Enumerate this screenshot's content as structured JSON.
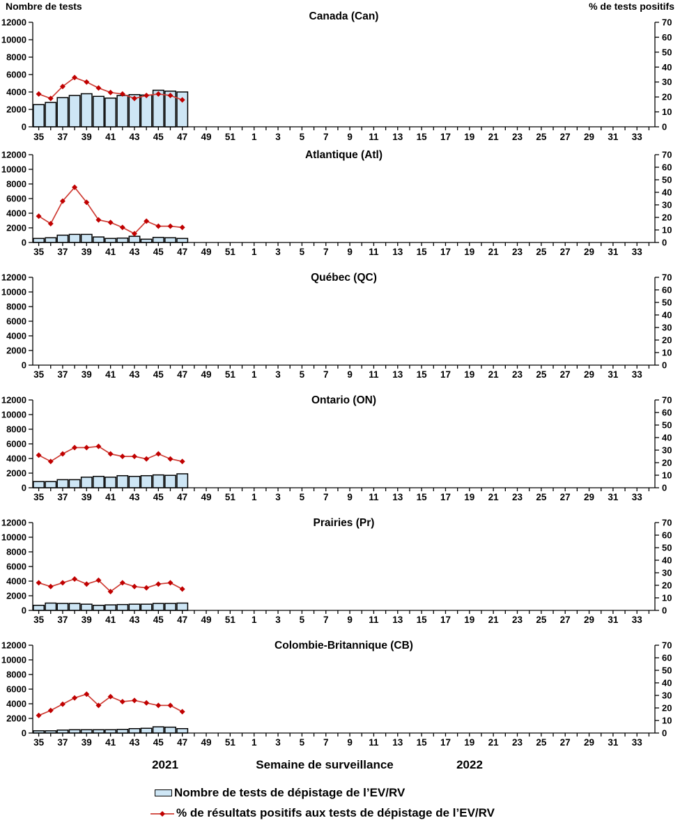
{
  "page": {
    "left_axis_header": "Nombre de tests",
    "right_axis_header": "% de tests positifs"
  },
  "footer": {
    "year_left": "2021",
    "xaxis_title": "Semaine de surveillance",
    "year_right": "2022"
  },
  "legend": {
    "tests_label": "Nombre de tests de dépistage de l’EV/RV",
    "pct_label": "% de résultats positifs aux tests de dépistage de l’EV/RV"
  },
  "colors": {
    "bar_fill": "#CEE6F5",
    "bar_stroke": "#000000",
    "line": "#CE3B33",
    "marker": "#C00000",
    "axis": "#000000"
  },
  "chart_data": {
    "type": "bar",
    "note": "Each panel combines bars (number of tests, left axis) and a line with diamond markers (% positive, right axis). Bars/line cover surveillance weeks 35-47 of 2021 only; weeks 48-52 of 2021 and 1-34 of 2022 have no data in every panel.",
    "x_all_weeks": [
      35,
      36,
      37,
      38,
      39,
      40,
      41,
      42,
      43,
      44,
      45,
      46,
      47,
      48,
      49,
      50,
      51,
      52,
      1,
      2,
      3,
      4,
      5,
      6,
      7,
      8,
      9,
      10,
      11,
      12,
      13,
      14,
      15,
      16,
      17,
      18,
      19,
      20,
      21,
      22,
      23,
      24,
      25,
      26,
      27,
      28,
      29,
      30,
      31,
      32,
      33,
      34
    ],
    "x_tick_labels": [
      "35",
      "37",
      "39",
      "41",
      "43",
      "45",
      "47",
      "49",
      "51",
      "1",
      "3",
      "5",
      "7",
      "9",
      "11",
      "13",
      "15",
      "17",
      "19",
      "21",
      "23",
      "25",
      "27",
      "29",
      "31",
      "33"
    ],
    "bar_weeks": [
      35,
      36,
      37,
      38,
      39,
      40,
      41,
      42,
      43,
      44,
      45,
      46,
      47
    ],
    "left_axis": {
      "title": "Nombre de tests",
      "range": [
        0,
        12000
      ],
      "ticks": [
        0,
        2000,
        4000,
        6000,
        8000,
        10000,
        12000
      ]
    },
    "right_axis": {
      "title": "% de tests positifs",
      "range": [
        0,
        70
      ],
      "ticks": [
        0,
        10,
        20,
        30,
        40,
        50,
        60,
        70
      ]
    },
    "xlabel": "Semaine de surveillance",
    "year_labels": [
      "2021",
      "2022"
    ],
    "grid": false,
    "legend_position": "bottom",
    "panels": [
      {
        "title": "Canada (Can)",
        "tests": [
          2550,
          2800,
          3350,
          3600,
          3800,
          3500,
          3300,
          3600,
          3700,
          3650,
          4200,
          4100,
          4000
        ],
        "pct_positive": [
          22,
          19,
          27,
          33,
          30,
          26,
          23,
          22,
          19,
          21,
          22,
          21,
          18
        ]
      },
      {
        "title": "Atlantique (Atl)",
        "tests": [
          550,
          650,
          1000,
          1100,
          1100,
          750,
          550,
          600,
          850,
          450,
          700,
          650,
          550
        ],
        "pct_positive": [
          21,
          15,
          33,
          44,
          32,
          18,
          16,
          12,
          7,
          17,
          13,
          13,
          12
        ]
      },
      {
        "title": "Québec (QC)",
        "tests": [],
        "pct_positive": []
      },
      {
        "title": "Ontario (ON)",
        "tests": [
          850,
          850,
          1100,
          1100,
          1450,
          1550,
          1450,
          1650,
          1550,
          1650,
          1750,
          1700,
          1900
        ],
        "pct_positive": [
          26,
          21,
          27,
          32,
          32,
          33,
          27,
          25,
          25,
          23,
          27,
          23,
          21
        ]
      },
      {
        "title": "Prairies (Pr)",
        "tests": [
          700,
          1000,
          950,
          950,
          850,
          700,
          750,
          800,
          850,
          850,
          950,
          950,
          1000
        ],
        "pct_positive": [
          22,
          19,
          22,
          25,
          21,
          24,
          15,
          22,
          19,
          18,
          21,
          22,
          17
        ]
      },
      {
        "title": "Colombie-Britannique (CB)",
        "tests": [
          300,
          300,
          400,
          450,
          450,
          450,
          450,
          500,
          600,
          650,
          850,
          800,
          600
        ],
        "pct_positive": [
          14,
          18,
          23,
          28,
          31,
          22,
          29,
          25,
          26,
          24,
          22,
          22,
          17
        ]
      }
    ]
  }
}
